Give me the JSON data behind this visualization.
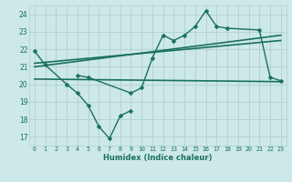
{
  "xlabel": "Humidex (Indice chaleur)",
  "xlim": [
    -0.5,
    23.5
  ],
  "ylim": [
    16.5,
    24.5
  ],
  "xticks": [
    0,
    1,
    2,
    3,
    4,
    5,
    6,
    7,
    8,
    9,
    10,
    11,
    12,
    13,
    14,
    15,
    16,
    17,
    18,
    19,
    20,
    21,
    22,
    23
  ],
  "yticks": [
    17,
    18,
    19,
    20,
    21,
    22,
    23,
    24
  ],
  "bg_color": "#cce8e8",
  "grid_color": "#b0d0d0",
  "line_color": "#1a7060",
  "series": [
    {
      "x": [
        0,
        1,
        3,
        4,
        5,
        6,
        7,
        8,
        9
      ],
      "y": [
        21.9,
        21.1,
        20.0,
        19.5,
        18.8,
        17.6,
        16.9,
        18.2,
        18.5
      ],
      "marker": "D",
      "markersize": 2.5,
      "linewidth": 1.0
    },
    {
      "x": [
        4,
        5,
        9,
        10,
        11,
        12,
        13,
        14,
        15,
        16,
        17,
        18,
        21,
        22,
        23
      ],
      "y": [
        20.5,
        20.4,
        19.5,
        19.8,
        21.5,
        22.8,
        22.5,
        22.8,
        23.3,
        24.2,
        23.3,
        23.2,
        23.1,
        20.4,
        20.2
      ],
      "marker": "D",
      "markersize": 2.5,
      "linewidth": 1.0
    },
    {
      "x": [
        0,
        23
      ],
      "y": [
        21.0,
        22.8
      ],
      "marker": null,
      "markersize": 0,
      "linewidth": 1.2
    },
    {
      "x": [
        0,
        23
      ],
      "y": [
        21.2,
        22.5
      ],
      "marker": null,
      "markersize": 0,
      "linewidth": 1.2
    },
    {
      "x": [
        0,
        23
      ],
      "y": [
        20.3,
        20.15
      ],
      "marker": null,
      "markersize": 0,
      "linewidth": 1.2
    }
  ]
}
